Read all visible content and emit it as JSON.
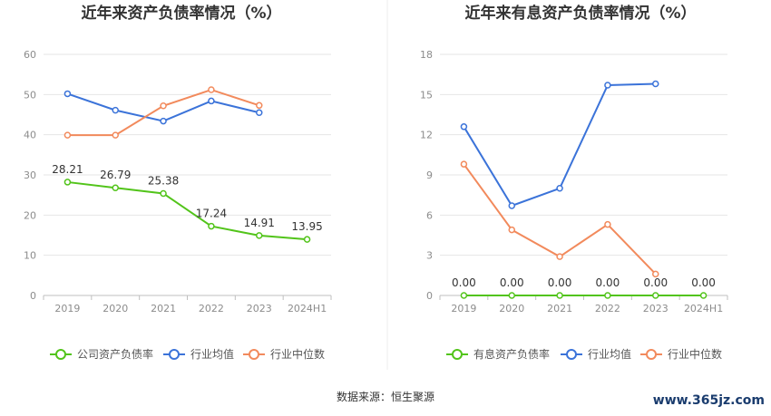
{
  "source_label": "数据来源：恒生聚源",
  "watermark": "www.365jz.com",
  "chart_data": [
    {
      "type": "line",
      "title": "近年来资产负债率情况（%）",
      "categories": [
        "2019",
        "2020",
        "2021",
        "2022",
        "2023",
        "2024H1"
      ],
      "ylim": [
        0,
        60
      ],
      "yticks": [
        0,
        10,
        20,
        30,
        40,
        50,
        60
      ],
      "grid": true,
      "legend_position": "bottom",
      "series": [
        {
          "name": "公司资产负债率",
          "color": "#52c41a",
          "values": [
            28.21,
            26.79,
            25.38,
            17.24,
            14.91,
            13.95
          ],
          "labels": [
            "28.21",
            "26.79",
            "25.38",
            "17.24",
            "14.91",
            "13.95"
          ]
        },
        {
          "name": "行业均值",
          "color": "#3b73d9",
          "values": [
            50.2,
            46.1,
            43.4,
            48.4,
            45.5,
            null
          ]
        },
        {
          "name": "行业中位数",
          "color": "#f28a5c",
          "values": [
            39.9,
            39.9,
            47.2,
            51.2,
            47.3,
            null
          ]
        }
      ]
    },
    {
      "type": "line",
      "title": "近年来有息资产负债率情况（%）",
      "categories": [
        "2019",
        "2020",
        "2021",
        "2022",
        "2023",
        "2024H1"
      ],
      "ylim": [
        0,
        18
      ],
      "yticks": [
        0,
        3,
        6,
        9,
        12,
        15,
        18
      ],
      "grid": true,
      "legend_position": "bottom",
      "series": [
        {
          "name": "有息资产负债率",
          "color": "#52c41a",
          "values": [
            0,
            0,
            0,
            0,
            0,
            0
          ],
          "labels": [
            "0.00",
            "0.00",
            "0.00",
            "0.00",
            "0.00",
            "0.00"
          ]
        },
        {
          "name": "行业均值",
          "color": "#3b73d9",
          "values": [
            12.6,
            6.7,
            8.0,
            15.7,
            15.8,
            null
          ]
        },
        {
          "name": "行业中位数",
          "color": "#f28a5c",
          "values": [
            9.8,
            4.9,
            2.9,
            5.3,
            1.6,
            null
          ]
        }
      ]
    }
  ]
}
